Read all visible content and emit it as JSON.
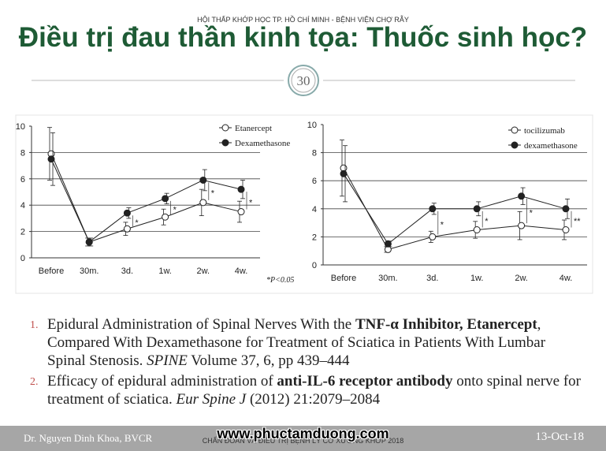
{
  "header": {
    "organization": "HỘI THẤP KHỚP HỌC TP. HỒ CHÍ MINH - BỆNH VIỆN CHỢ RẪY",
    "title": "Điều trị đau thần kinh tọa: Thuốc sinh học?",
    "page": "30"
  },
  "chart_data": [
    {
      "type": "line",
      "categories": [
        "Before",
        "30m.",
        "3d.",
        "1w.",
        "2w.",
        "4w."
      ],
      "ylim": [
        0,
        10
      ],
      "yticks": [
        0,
        2,
        4,
        6,
        8,
        10
      ],
      "grid": true,
      "legend": "upper-right",
      "series": [
        {
          "name": "Etanercept",
          "color": "#222222",
          "marker": "open",
          "values": [
            7.9,
            1.2,
            2.2,
            3.1,
            4.2,
            3.5
          ],
          "errors": [
            2.0,
            0.3,
            0.5,
            0.6,
            1.0,
            0.8
          ]
        },
        {
          "name": "Dexamethasone",
          "color": "#222222",
          "marker": "filled",
          "values": [
            7.5,
            1.2,
            3.4,
            4.5,
            5.9,
            5.2
          ],
          "errors": [
            2.0,
            0.3,
            0.4,
            0.4,
            0.8,
            0.7
          ]
        }
      ],
      "significance": [
        null,
        null,
        "*",
        "*",
        "*",
        "*"
      ],
      "annotation": "*P<0.05"
    },
    {
      "type": "line",
      "categories": [
        "Before",
        "30m.",
        "3d.",
        "1w.",
        "2w.",
        "4w."
      ],
      "ylim": [
        0,
        10
      ],
      "yticks": [
        0,
        2,
        4,
        6,
        8,
        10
      ],
      "grid": true,
      "legend": "upper-right",
      "series": [
        {
          "name": "tocilizumab",
          "color": "#222222",
          "marker": "open",
          "values": [
            6.9,
            1.1,
            2.0,
            2.5,
            2.8,
            2.5
          ],
          "errors": [
            2.0,
            0.2,
            0.4,
            0.6,
            1.0,
            0.7
          ]
        },
        {
          "name": "dexamethasone",
          "color": "#222222",
          "marker": "filled",
          "values": [
            6.5,
            1.5,
            4.0,
            4.0,
            4.9,
            4.0
          ],
          "errors": [
            2.0,
            0.2,
            0.4,
            0.5,
            0.6,
            0.7
          ]
        }
      ],
      "significance": [
        null,
        null,
        "*",
        "*",
        "*",
        "**"
      ]
    }
  ],
  "references": [
    {
      "number": "1.",
      "runs": [
        {
          "text": "Epidural Administration of Spinal Nerves With the ",
          "style": "normal"
        },
        {
          "text": "TNF-α Inhibitor, Etanercept",
          "style": "bold"
        },
        {
          "text": ", Compared With Dexamethasone for Treatment of Sciatica in Patients With Lumbar Spinal Stenosis. ",
          "style": "normal"
        },
        {
          "text": "SPINE",
          "style": "italic"
        },
        {
          "text": " Volume 37, 6, pp 439–444",
          "style": "normal"
        }
      ]
    },
    {
      "number": "2.",
      "runs": [
        {
          "text": "Efficacy of epidural administration of ",
          "style": "normal"
        },
        {
          "text": "anti-IL-6 receptor antibody",
          "style": "bold"
        },
        {
          "text": " onto spinal nerve for treatment of sciatica. ",
          "style": "normal"
        },
        {
          "text": "Eur Spine J",
          "style": "italic"
        },
        {
          "text": " (2012) 21:2079–2084",
          "style": "normal"
        }
      ]
    }
  ],
  "footer": {
    "author": "Dr. Nguyen Dinh Khoa, BVCR",
    "event": "CHẨN ĐOÁN VÀ ĐIỀU TRỊ BỆNH LÝ CƠ XƯƠNG KHỚP 2018",
    "watermark": "www.phuctamduong.com",
    "date": "13-Oct-18"
  }
}
